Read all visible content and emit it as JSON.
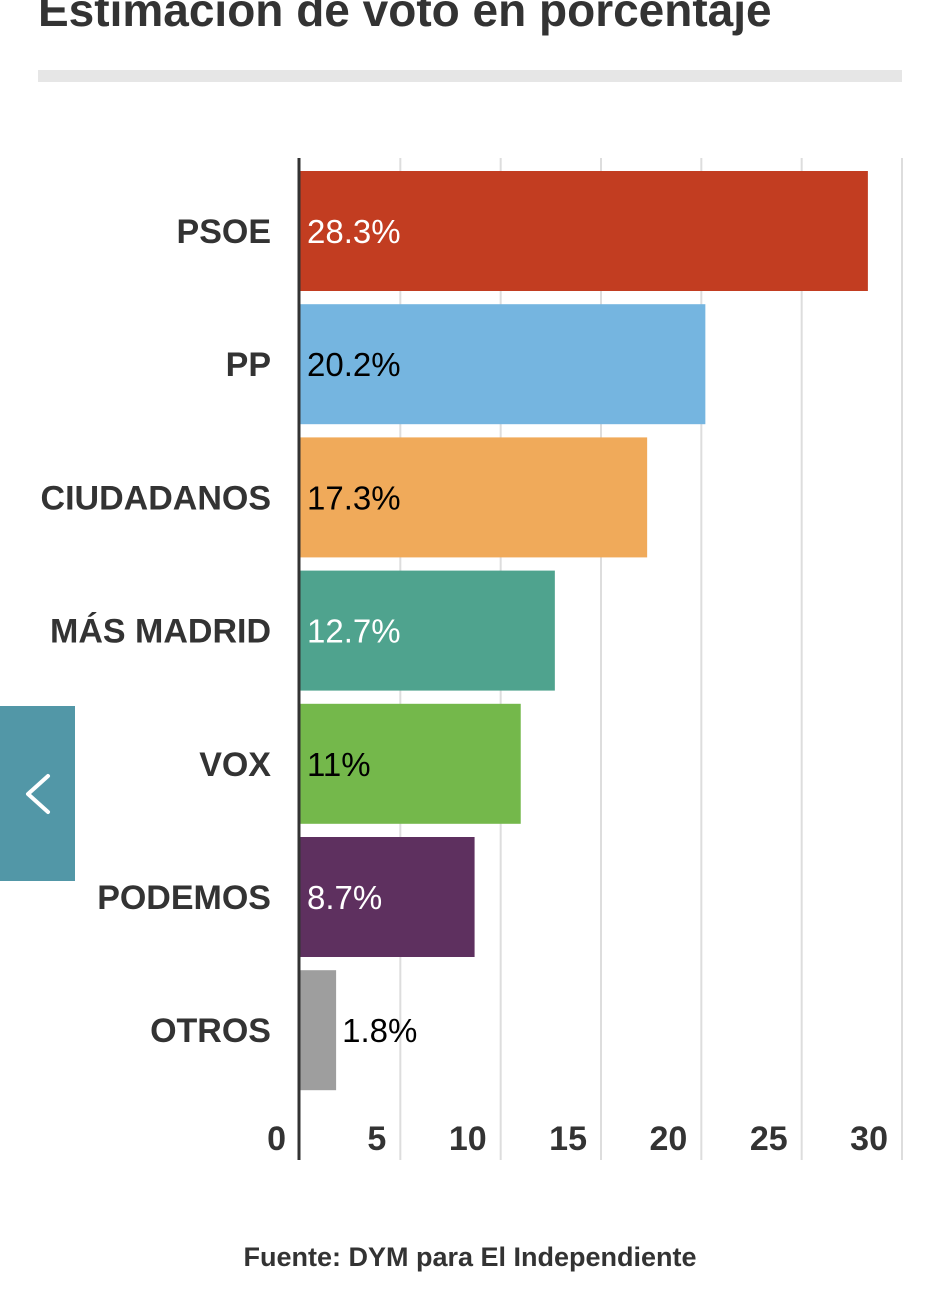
{
  "chart_data": {
    "type": "bar",
    "orientation": "horizontal",
    "title": "Estimación de voto en porcentaje",
    "categories": [
      "PSOE",
      "PP",
      "CIUDADANOS",
      "MÁS MADRID",
      "VOX",
      "PODEMOS",
      "OTROS"
    ],
    "values": [
      28.3,
      20.2,
      17.3,
      12.7,
      11,
      8.7,
      1.8
    ],
    "value_labels": [
      "28.3%",
      "20.2%",
      "17.3%",
      "12.7%",
      "11%",
      "8.7%",
      "1.8%"
    ],
    "colors": [
      "#c23d21",
      "#75b5e0",
      "#f0aa5a",
      "#4fa38e",
      "#74b84b",
      "#5e305f",
      "#9e9e9e"
    ],
    "label_colors": [
      "#ffffff",
      "#000000",
      "#000000",
      "#ffffff",
      "#000000",
      "#ffffff",
      "#000000"
    ],
    "xlim": [
      0,
      30
    ],
    "xticks": [
      0,
      5,
      10,
      15,
      20,
      25,
      30
    ],
    "xlabel": "",
    "ylabel": "",
    "grid": true,
    "legend": "none"
  },
  "source": "Fuente: DYM para El Independiente",
  "nav": {
    "prev_icon": "chevron-left-icon"
  }
}
